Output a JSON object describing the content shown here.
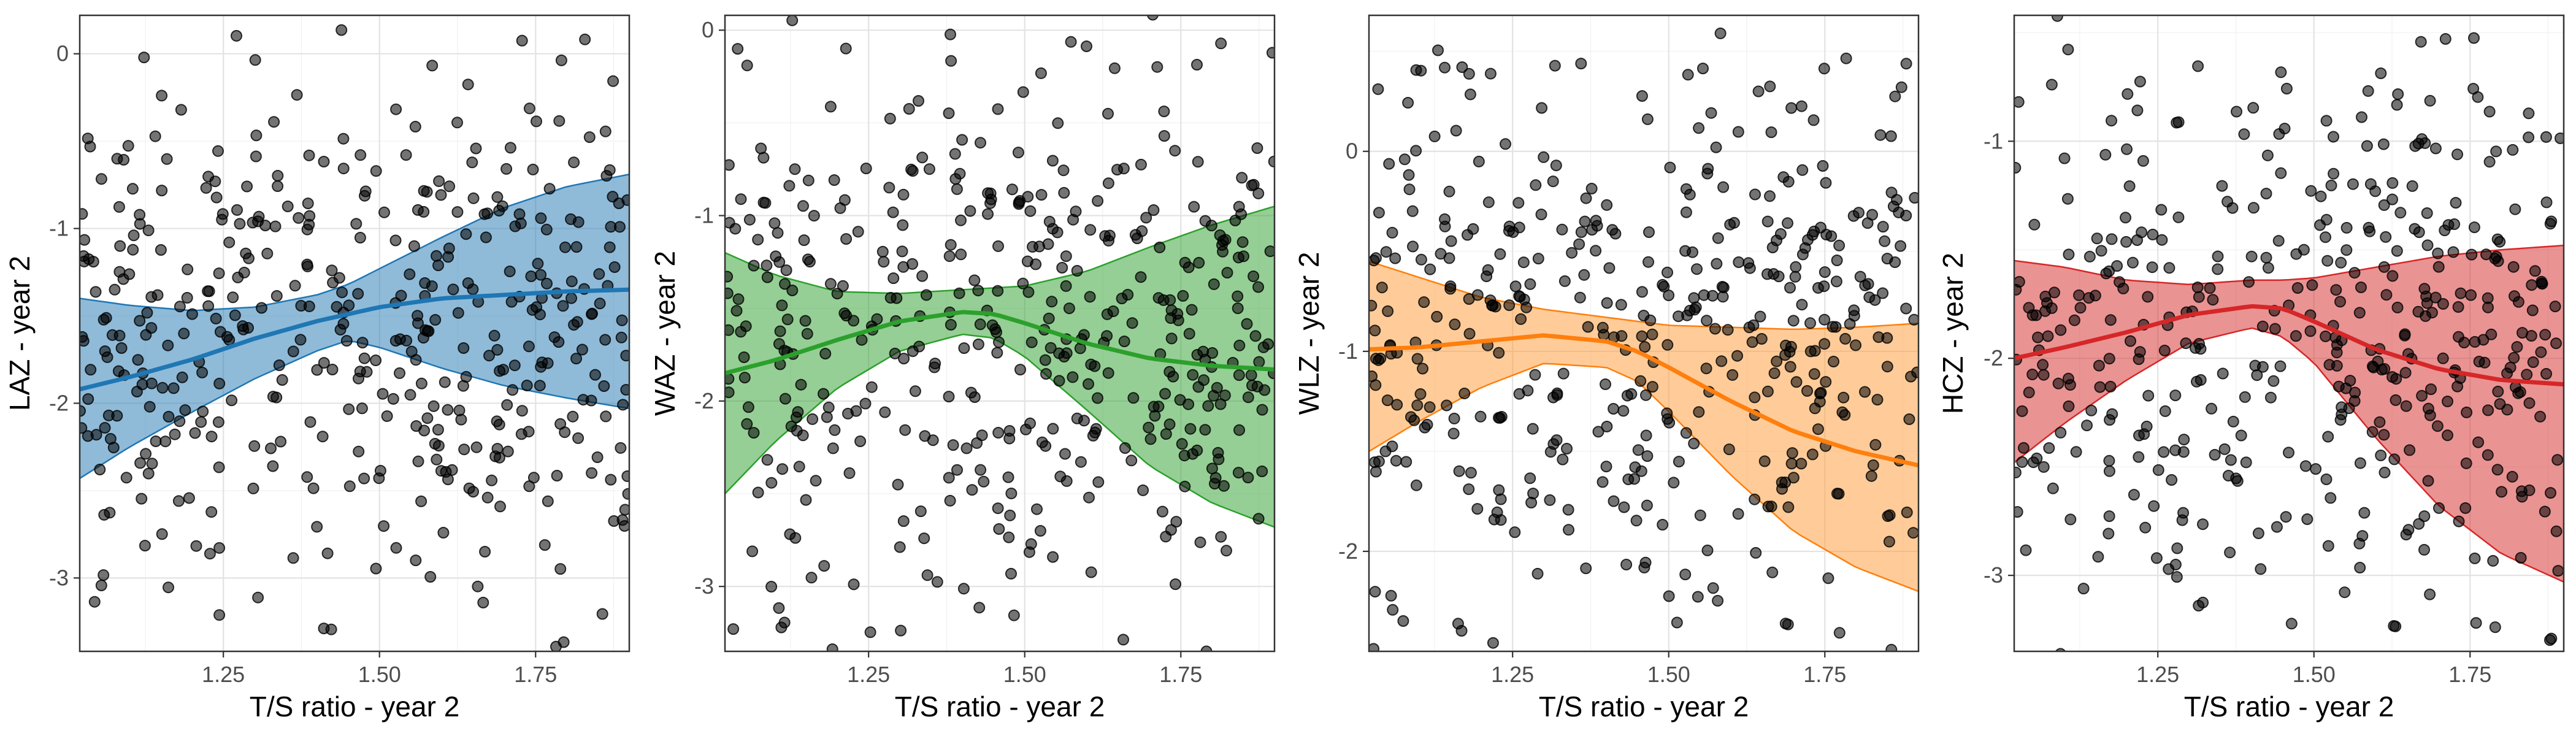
{
  "chart_data": [
    {
      "type": "scatter",
      "xlabel": "T/S ratio - year 2",
      "ylabel": "LAZ - year 2",
      "xlim": [
        1.02,
        1.9
      ],
      "ylim": [
        -3.42,
        0.22
      ],
      "x_ticks": [
        1.25,
        1.5,
        1.75
      ],
      "x_tick_labels": [
        "1.25",
        "1.50",
        "1.75"
      ],
      "y_ticks": [
        -3,
        -2,
        -1,
        0
      ],
      "y_tick_labels": [
        "-3",
        "-2",
        "-1",
        "0"
      ],
      "grid": true,
      "color": "#1F77B4",
      "band_fill": "#1F77B4",
      "n_points": 450,
      "points_y_center": -1.65,
      "points_y_sd": 0.8,
      "smooth_x": [
        1.02,
        1.1,
        1.2,
        1.3,
        1.4,
        1.45,
        1.5,
        1.6,
        1.7,
        1.8,
        1.9
      ],
      "smooth_fit": [
        -1.92,
        -1.85,
        -1.75,
        -1.63,
        -1.53,
        -1.49,
        -1.45,
        -1.4,
        -1.38,
        -1.36,
        -1.35
      ],
      "smooth_lower": [
        -2.43,
        -2.25,
        -2.05,
        -1.86,
        -1.7,
        -1.64,
        -1.68,
        -1.8,
        -1.9,
        -1.97,
        -2.03
      ],
      "smooth_upper": [
        -1.4,
        -1.44,
        -1.47,
        -1.45,
        -1.38,
        -1.32,
        -1.23,
        -1.05,
        -0.88,
        -0.76,
        -0.69
      ]
    },
    {
      "type": "scatter",
      "xlabel": "T/S ratio - year 2",
      "ylabel": "WAZ - year 2",
      "xlim": [
        1.02,
        1.9
      ],
      "ylim": [
        -3.35,
        0.08
      ],
      "x_ticks": [
        1.25,
        1.5,
        1.75
      ],
      "x_tick_labels": [
        "1.25",
        "1.50",
        "1.75"
      ],
      "y_ticks": [
        -3,
        -2,
        -1,
        0
      ],
      "y_tick_labels": [
        "-3",
        "-2",
        "-1",
        "0"
      ],
      "grid": true,
      "color": "#2CA02C",
      "band_fill": "#2CA02C",
      "n_points": 450,
      "points_y_center": -1.55,
      "points_y_sd": 0.75,
      "smooth_x": [
        1.02,
        1.1,
        1.2,
        1.3,
        1.4,
        1.45,
        1.5,
        1.6,
        1.7,
        1.8,
        1.9
      ],
      "smooth_fit": [
        -1.85,
        -1.78,
        -1.67,
        -1.57,
        -1.52,
        -1.53,
        -1.58,
        -1.69,
        -1.77,
        -1.81,
        -1.83
      ],
      "smooth_lower": [
        -2.5,
        -2.22,
        -1.93,
        -1.73,
        -1.64,
        -1.66,
        -1.76,
        -2.05,
        -2.35,
        -2.55,
        -2.68
      ],
      "smooth_upper": [
        -1.2,
        -1.32,
        -1.41,
        -1.42,
        -1.4,
        -1.39,
        -1.38,
        -1.3,
        -1.17,
        -1.05,
        -0.95
      ]
    },
    {
      "type": "scatter",
      "xlabel": "T/S ratio - year 2",
      "ylabel": "WLZ - year 2",
      "xlim": [
        1.02,
        1.9
      ],
      "ylim": [
        -2.5,
        0.68
      ],
      "x_ticks": [
        1.25,
        1.5,
        1.75
      ],
      "x_tick_labels": [
        "1.25",
        "1.50",
        "1.75"
      ],
      "y_ticks": [
        -2,
        -1,
        0
      ],
      "y_tick_labels": [
        "-2",
        "-1",
        "0"
      ],
      "grid": true,
      "color": "#FF7F0E",
      "band_fill": "#FF9933",
      "n_points": 450,
      "points_y_center": -0.9,
      "points_y_sd": 0.72,
      "smooth_x": [
        1.02,
        1.1,
        1.2,
        1.3,
        1.4,
        1.45,
        1.5,
        1.6,
        1.7,
        1.8,
        1.9
      ],
      "smooth_fit": [
        -0.99,
        -0.98,
        -0.95,
        -0.92,
        -0.95,
        -1.0,
        -1.08,
        -1.25,
        -1.4,
        -1.5,
        -1.57
      ],
      "smooth_lower": [
        -1.5,
        -1.35,
        -1.18,
        -1.06,
        -1.08,
        -1.15,
        -1.3,
        -1.62,
        -1.9,
        -2.08,
        -2.2
      ],
      "smooth_upper": [
        -0.55,
        -0.63,
        -0.73,
        -0.79,
        -0.83,
        -0.85,
        -0.87,
        -0.88,
        -0.89,
        -0.88,
        -0.86
      ]
    },
    {
      "type": "scatter",
      "xlabel": "T/S ratio - year 2",
      "ylabel": "HCZ - year 2",
      "xlim": [
        1.02,
        1.9
      ],
      "ylim": [
        -3.35,
        -0.42
      ],
      "x_ticks": [
        1.25,
        1.5,
        1.75
      ],
      "x_tick_labels": [
        "1.25",
        "1.50",
        "1.75"
      ],
      "y_ticks": [
        -3,
        -2,
        -1
      ],
      "y_tick_labels": [
        "-3",
        "-2",
        "-1"
      ],
      "grid": true,
      "color": "#D62728",
      "band_fill": "#D62728",
      "n_points": 450,
      "points_y_center": -1.85,
      "points_y_sd": 0.7,
      "smooth_x": [
        1.02,
        1.1,
        1.2,
        1.3,
        1.4,
        1.45,
        1.5,
        1.6,
        1.7,
        1.8,
        1.9
      ],
      "smooth_fit": [
        -2.0,
        -1.95,
        -1.88,
        -1.8,
        -1.76,
        -1.77,
        -1.83,
        -1.96,
        -2.05,
        -2.1,
        -2.12
      ],
      "smooth_lower": [
        -2.48,
        -2.3,
        -2.1,
        -1.93,
        -1.86,
        -1.9,
        -2.02,
        -2.37,
        -2.68,
        -2.9,
        -3.03
      ],
      "smooth_upper": [
        -1.55,
        -1.58,
        -1.64,
        -1.66,
        -1.64,
        -1.64,
        -1.63,
        -1.58,
        -1.53,
        -1.5,
        -1.48
      ]
    }
  ]
}
